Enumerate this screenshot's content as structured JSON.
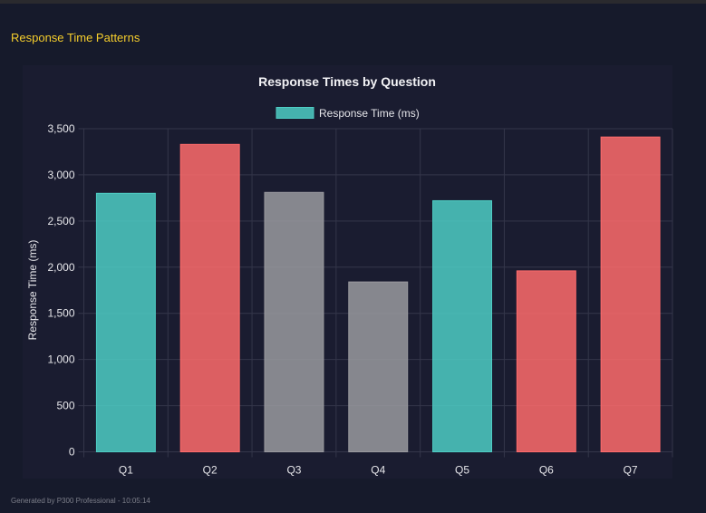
{
  "page": {
    "section_title": "Response Time Patterns",
    "footer": "Generated by P300 Professional - 10:05:14"
  },
  "chart_data": {
    "type": "bar",
    "title": "Response Times by Question",
    "xlabel": "",
    "ylabel": "Response Time (ms)",
    "ylim": [
      0,
      3500
    ],
    "yticks": [
      0,
      500,
      1000,
      1500,
      2000,
      2500,
      3000,
      3500
    ],
    "ytick_labels": [
      "0",
      "500",
      "1,000",
      "1,500",
      "2,000",
      "2,500",
      "3,000",
      "3,500"
    ],
    "grid": true,
    "legend": {
      "placement": "top",
      "label": "Response Time (ms)",
      "color": "#4ecdc4"
    },
    "categories": [
      "Q1",
      "Q2",
      "Q3",
      "Q4",
      "Q5",
      "Q6",
      "Q7"
    ],
    "values": [
      2800,
      3330,
      2810,
      1840,
      2720,
      1960,
      3410
    ],
    "colors": [
      "#4ecdc4",
      "#ff6b6b",
      "#9a9a9f",
      "#9a9a9f",
      "#4ecdc4",
      "#ff6b6b",
      "#ff6b6b"
    ]
  }
}
